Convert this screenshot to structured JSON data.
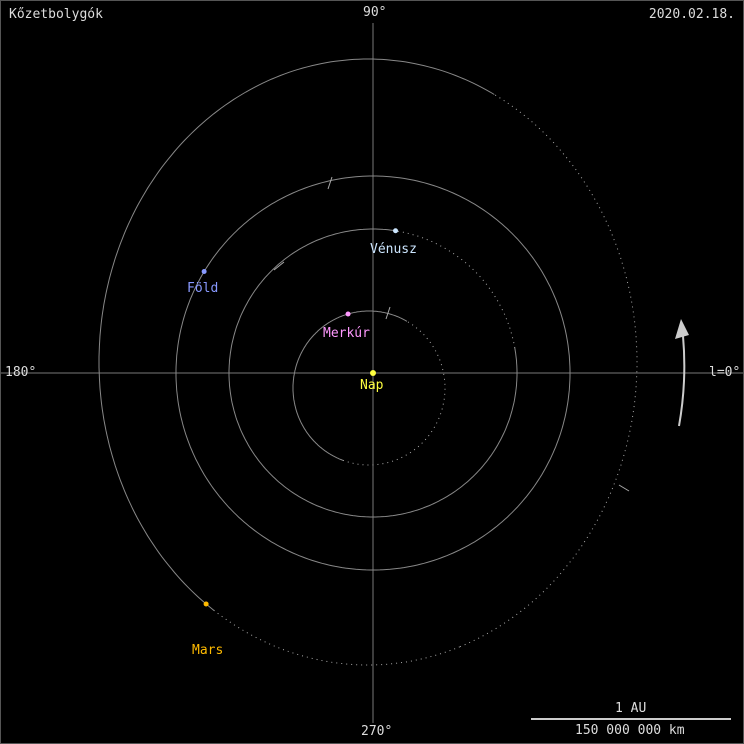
{
  "title": "Kőzetbolygók",
  "date": "2020.02.18.",
  "angles": {
    "top": "90°",
    "left": "180°",
    "bottom": "270°",
    "right": "l=0°"
  },
  "sun": {
    "label": "Nap",
    "color": "#ffff40"
  },
  "planets": [
    {
      "label": "Merkúr",
      "color": "#ff99ff"
    },
    {
      "label": "Vénusz",
      "color": "#cce6ff"
    },
    {
      "label": "Föld",
      "color": "#8899ff"
    },
    {
      "label": "Mars",
      "color": "#ffbb00"
    }
  ],
  "scale": {
    "top": "1 AU",
    "bottom": "150 000 000 km"
  },
  "direction_arrow": "counterclockwise-arrow"
}
